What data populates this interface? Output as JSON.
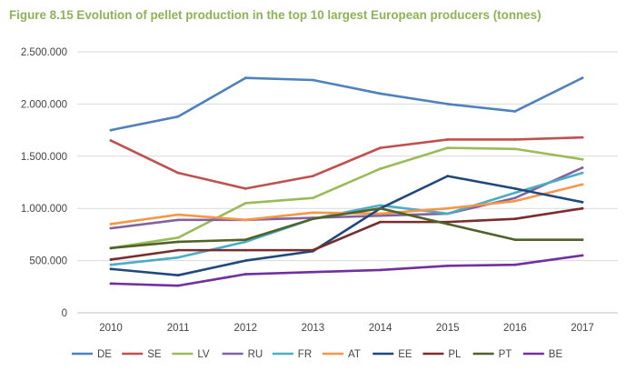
{
  "figure_title": "Figure 8.15 Evolution of pellet production in the top 10 largest European producers (tonnes)",
  "chart_data": {
    "type": "line",
    "title": "Figure 8.15 Evolution of pellet production in the top 10 largest European producers (tonnes)",
    "xlabel": "",
    "ylabel": "",
    "x": [
      2010,
      2011,
      2012,
      2013,
      2014,
      2015,
      2016,
      2017
    ],
    "x_labels": [
      "2010",
      "2011",
      "2012",
      "2013",
      "2014",
      "2015",
      "2016",
      "2017"
    ],
    "ylim": [
      0,
      2500000
    ],
    "y_ticks": [
      0,
      500000,
      1000000,
      1500000,
      2000000,
      2500000
    ],
    "y_tick_labels": [
      "0",
      "500.000",
      "1.000.000",
      "1.500.000",
      "2.000.000",
      "2.500.000"
    ],
    "grid": true,
    "legend_position": "bottom",
    "series": [
      {
        "name": "DE",
        "color": "#4f81bd",
        "values": [
          1750000,
          1880000,
          2250000,
          2230000,
          2100000,
          2000000,
          1930000,
          2250000
        ]
      },
      {
        "name": "SE",
        "color": "#c0504d",
        "values": [
          1650000,
          1340000,
          1190000,
          1310000,
          1580000,
          1660000,
          1660000,
          1680000
        ]
      },
      {
        "name": "LV",
        "color": "#9bbb59",
        "values": [
          620000,
          720000,
          1050000,
          1100000,
          1380000,
          1580000,
          1570000,
          1470000
        ]
      },
      {
        "name": "RU",
        "color": "#8064a2",
        "values": [
          810000,
          890000,
          890000,
          910000,
          930000,
          950000,
          1100000,
          1390000
        ]
      },
      {
        "name": "FR",
        "color": "#4bacc6",
        "values": [
          460000,
          530000,
          680000,
          900000,
          1030000,
          950000,
          1150000,
          1340000
        ]
      },
      {
        "name": "AT",
        "color": "#f79646",
        "values": [
          850000,
          940000,
          890000,
          960000,
          950000,
          1000000,
          1070000,
          1230000
        ]
      },
      {
        "name": "EE",
        "color": "#1f497d",
        "values": [
          420000,
          360000,
          500000,
          590000,
          1000000,
          1310000,
          1190000,
          1060000
        ]
      },
      {
        "name": "PL",
        "color": "#7b2c2c",
        "values": [
          510000,
          600000,
          600000,
          600000,
          870000,
          870000,
          900000,
          1000000
        ]
      },
      {
        "name": "PT",
        "color": "#4f6228",
        "values": [
          620000,
          680000,
          700000,
          900000,
          1000000,
          850000,
          700000,
          700000
        ]
      },
      {
        "name": "BE",
        "color": "#7030a0",
        "values": [
          280000,
          260000,
          370000,
          390000,
          410000,
          450000,
          460000,
          550000
        ]
      }
    ]
  }
}
